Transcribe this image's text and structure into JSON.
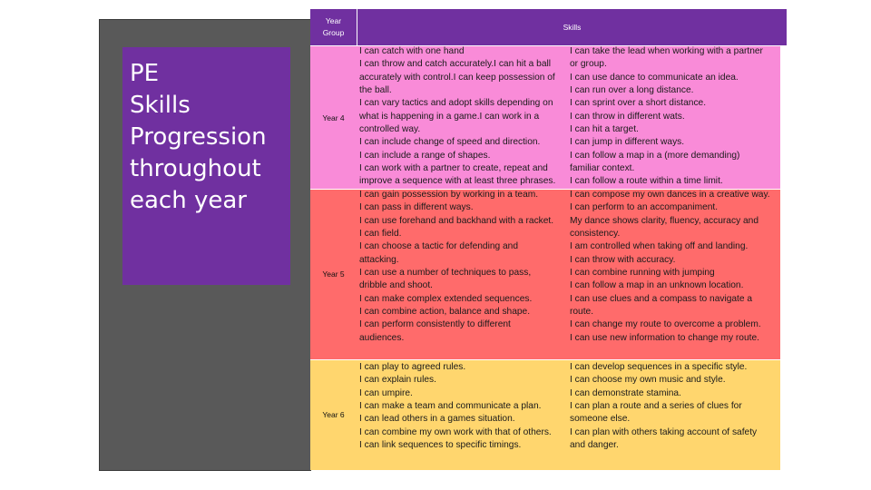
{
  "title_box": {
    "lines": [
      "PE",
      "Skills",
      "Progression",
      "throughout",
      "each year"
    ]
  },
  "table": {
    "header": {
      "year_group": "Year Group",
      "skills": "Skills"
    },
    "rows": [
      {
        "year": "Year 4",
        "col_a": [
          "I can catch with one hand",
          "I can throw and catch accurately.I can hit a ball",
          "accurately with control.I can keep possession of",
          "the ball.",
          "I can vary tactics and adopt skills depending on",
          "what is happening in a game.I can work in a",
          "controlled way.",
          "I can include change of speed and direction.",
          "I can include a range of shapes.",
          "I can work with a partner to create, repeat and",
          "improve a sequence with at least three phrases."
        ],
        "col_b": [
          "I can take the lead when working with a partner",
          "or group.",
          "I can use dance to communicate an idea.",
          "I can run over a long distance.",
          "I can sprint over a short distance.",
          "I can throw in different wats.",
          "I can hit a target.",
          "I can jump in different ways.",
          "I can follow a map in a (more demanding)",
          "familiar context.",
          "I can follow a route within a time limit."
        ]
      },
      {
        "year": "Year 5",
        "col_a": [
          "I can gain possession by working in a team.",
          "I can pass in different ways.",
          "I can use forehand and backhand with a racket.",
          "I can field.",
          "I can choose a tactic for defending and",
          "attacking.",
          "I can use a number of techniques to pass,",
          "dribble and shoot.",
          "I can make complex extended sequences.",
          "I can combine action, balance and shape.",
          "I can perform consistently to different",
          "audiences."
        ],
        "col_b": [
          "I can compose my own dances in a creative way.",
          "I can perform to an accompaniment.",
          "My dance shows clarity, fluency, accuracy and",
          "consistency.",
          "I am controlled when taking off and landing.",
          "I can throw with accuracy.",
          "I can combine running with jumping",
          "I can follow a map in an unknown location.",
          "I can use clues and a compass to navigate a",
          "route.",
          "I can change my route to overcome a problem.",
          "I can use new information to change my route."
        ]
      },
      {
        "year": "Year 6",
        "col_a": [
          "I can play to agreed rules.",
          "I can explain rules.",
          "I can umpire.",
          "I can make a team and communicate a plan.",
          "I can lead others in a games situation.",
          "I can combine my own work with that of others.",
          "I can link sequences to specific timings."
        ],
        "col_b": [
          "I can develop sequences in a specific style.",
          "I can choose my own music and style.",
          "I can demonstrate stamina.",
          "I can plan a route and a series of clues for",
          "someone else.",
          "I can plan with others taking account of safety",
          "and danger."
        ]
      }
    ]
  },
  "colors": {
    "header_purple": "#7030a0",
    "year4_pink": "#f98bd8",
    "year5_red": "#ff6b6b",
    "year6_yellow": "#ffd66e",
    "frame_grey": "#595959"
  }
}
